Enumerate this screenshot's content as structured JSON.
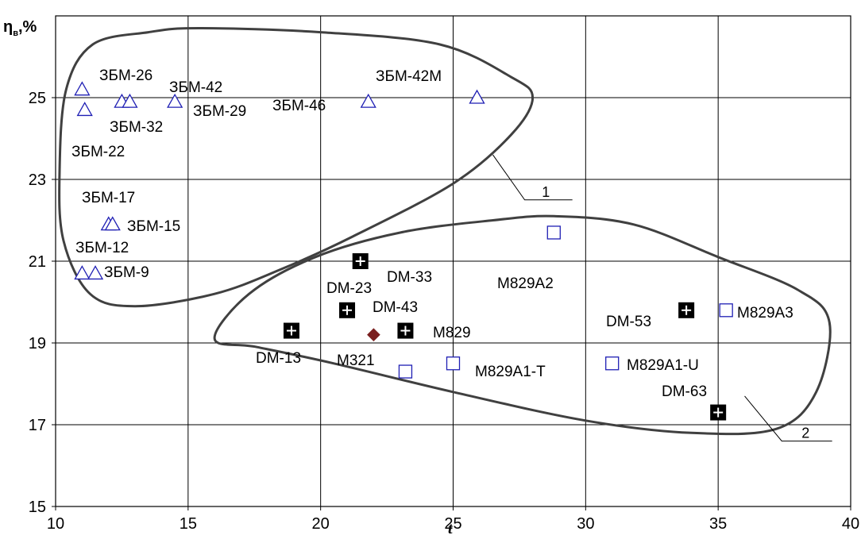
{
  "chart_data": {
    "type": "scatter",
    "ylabel_main": "η",
    "ylabel_sub": "в",
    "ylabel_unit": ",%",
    "xlabel": "t",
    "xlim": [
      10,
      40
    ],
    "ylim": [
      15,
      27
    ],
    "x_ticks": [
      "10",
      "15",
      "20",
      "25",
      "30",
      "35",
      "40"
    ],
    "y_ticks": [
      "15",
      "17",
      "19",
      "21",
      "23",
      "25"
    ],
    "grid": true,
    "series": [
      {
        "marker": "triangle-open",
        "color": "#1f1fb4",
        "points": [
          {
            "x": 11.0,
            "y": 25.2,
            "label": "ЗБМ-26"
          },
          {
            "x": 11.1,
            "y": 24.7,
            "label": "ЗБМ-22"
          },
          {
            "x": 12.5,
            "y": 24.9,
            "label": "ЗБМ-32"
          },
          {
            "x": 12.8,
            "y": 24.9,
            "label": ""
          },
          {
            "x": 14.5,
            "y": 24.9,
            "label": "ЗБМ-42"
          },
          {
            "x": 21.8,
            "y": 24.9,
            "label": "ЗБМ-46"
          },
          {
            "x": 25.9,
            "y": 25.0,
            "label": "ЗБМ-42М"
          },
          {
            "x": 12.0,
            "y": 21.9,
            "label": "ЗБМ-17"
          },
          {
            "x": 12.15,
            "y": 21.9,
            "label": "ЗБМ-15"
          },
          {
            "x": 11.0,
            "y": 20.7,
            "label": "ЗБМ-12"
          },
          {
            "x": 11.5,
            "y": 20.7,
            "label": "ЗБМ-9"
          }
        ],
        "extra_labels": [
          "ЗБМ-29"
        ]
      },
      {
        "marker": "square-open",
        "color": "#1f1fb4",
        "points": [
          {
            "x": 28.8,
            "y": 21.7,
            "label": "M829A2"
          },
          {
            "x": 35.3,
            "y": 19.8,
            "label": "M829A3"
          },
          {
            "x": 23.2,
            "y": 18.3,
            "label": ""
          },
          {
            "x": 25.0,
            "y": 18.5,
            "label": "M829A1-T"
          },
          {
            "x": 31.0,
            "y": 18.5,
            "label": "M829A1-U"
          }
        ]
      },
      {
        "marker": "square-filled-plus",
        "color": "#000000",
        "points": [
          {
            "x": 18.9,
            "y": 19.3,
            "label": "DM-13"
          },
          {
            "x": 21.0,
            "y": 19.8,
            "label": "DM-23"
          },
          {
            "x": 21.5,
            "y": 21.0,
            "label": "DM-33"
          },
          {
            "x": 23.2,
            "y": 19.3,
            "label": "DM-43"
          },
          {
            "x": 33.8,
            "y": 19.8,
            "label": "DM-53"
          },
          {
            "x": 35.0,
            "y": 17.3,
            "label": "DM-63"
          }
        ]
      },
      {
        "marker": "diamond-filled",
        "color": "#7a1f1f",
        "points": [
          {
            "x": 22.0,
            "y": 19.2,
            "label": "M321"
          }
        ]
      }
    ],
    "extra_text": [
      "M829"
    ],
    "regions": [
      {
        "label": "1"
      },
      {
        "label": "2"
      }
    ]
  }
}
